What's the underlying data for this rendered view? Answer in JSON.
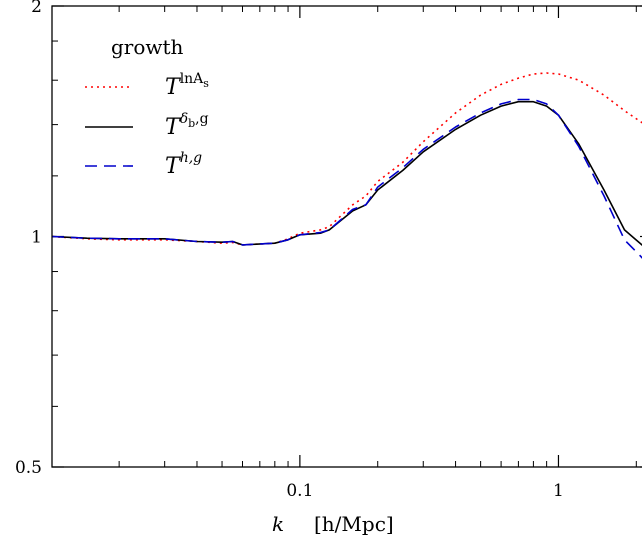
{
  "chart_data": {
    "type": "line",
    "title": "",
    "xlabel": "k [h/Mpc]",
    "xlabel_k": "k",
    "xlabel_unit": "[h/Mpc]",
    "ylabel": "",
    "xscale": "log",
    "yscale": "log",
    "xlim": [
      0.011,
      2.3
    ],
    "ylim": [
      0.5,
      2.0
    ],
    "x_ticks": [
      {
        "value": 0.1,
        "label": "0.1"
      },
      {
        "value": 1,
        "label": "1"
      }
    ],
    "y_ticks": [
      {
        "value": 0.5,
        "label": "0.5"
      },
      {
        "value": 1,
        "label": "1"
      },
      {
        "value": 2,
        "label": "2"
      }
    ],
    "legend": {
      "title": "growth",
      "placement": "top-left",
      "entries": [
        {
          "base": "T",
          "sup": "lnA",
          "sub": "s",
          "sup2": ""
        },
        {
          "base": "T",
          "sup": "δ",
          "sub": "b",
          "sup2": ",g"
        },
        {
          "base": "T",
          "sup": "h,g",
          "sub": "",
          "sup2": ""
        }
      ]
    },
    "series": [
      {
        "color": "#ff0000",
        "dash": "dotted",
        "x": [
          0.011,
          0.015,
          0.02,
          0.03,
          0.04,
          0.05,
          0.055,
          0.06,
          0.08,
          0.09,
          0.1,
          0.12,
          0.13,
          0.16,
          0.18,
          0.2,
          0.25,
          0.3,
          0.4,
          0.5,
          0.6,
          0.7,
          0.8,
          0.9,
          1.0,
          1.2,
          1.5,
          1.8,
          2.3
        ],
        "y": [
          1.0,
          0.993,
          0.99,
          0.99,
          0.985,
          0.98,
          0.982,
          0.975,
          0.98,
          0.993,
          1.01,
          1.02,
          1.03,
          1.1,
          1.13,
          1.18,
          1.25,
          1.33,
          1.45,
          1.53,
          1.58,
          1.61,
          1.63,
          1.635,
          1.63,
          1.6,
          1.53,
          1.46,
          1.38
        ]
      },
      {
        "color": "#000000",
        "dash": "solid",
        "x": [
          0.011,
          0.015,
          0.02,
          0.03,
          0.04,
          0.05,
          0.055,
          0.06,
          0.08,
          0.09,
          0.1,
          0.12,
          0.13,
          0.16,
          0.18,
          0.2,
          0.25,
          0.3,
          0.4,
          0.5,
          0.6,
          0.7,
          0.8,
          0.9,
          1.0,
          1.2,
          1.5,
          1.8,
          2.3
        ],
        "y": [
          1.0,
          0.995,
          0.993,
          0.993,
          0.985,
          0.983,
          0.985,
          0.975,
          0.98,
          0.99,
          1.005,
          1.01,
          1.02,
          1.08,
          1.1,
          1.15,
          1.22,
          1.29,
          1.38,
          1.44,
          1.48,
          1.5,
          1.5,
          1.48,
          1.44,
          1.32,
          1.15,
          1.02,
          0.95
        ]
      },
      {
        "color": "#0000cc",
        "dash": "dashed",
        "x": [
          0.011,
          0.015,
          0.02,
          0.03,
          0.04,
          0.05,
          0.055,
          0.06,
          0.08,
          0.09,
          0.1,
          0.12,
          0.13,
          0.16,
          0.18,
          0.2,
          0.25,
          0.3,
          0.4,
          0.5,
          0.6,
          0.7,
          0.8,
          0.9,
          1.0,
          1.2,
          1.5,
          1.8,
          2.3
        ],
        "y": [
          1.0,
          0.995,
          0.993,
          0.993,
          0.985,
          0.983,
          0.985,
          0.975,
          0.98,
          0.99,
          1.005,
          1.012,
          1.02,
          1.085,
          1.1,
          1.16,
          1.23,
          1.3,
          1.39,
          1.45,
          1.49,
          1.51,
          1.51,
          1.49,
          1.44,
          1.31,
          1.13,
          0.99,
          0.91
        ]
      }
    ]
  }
}
